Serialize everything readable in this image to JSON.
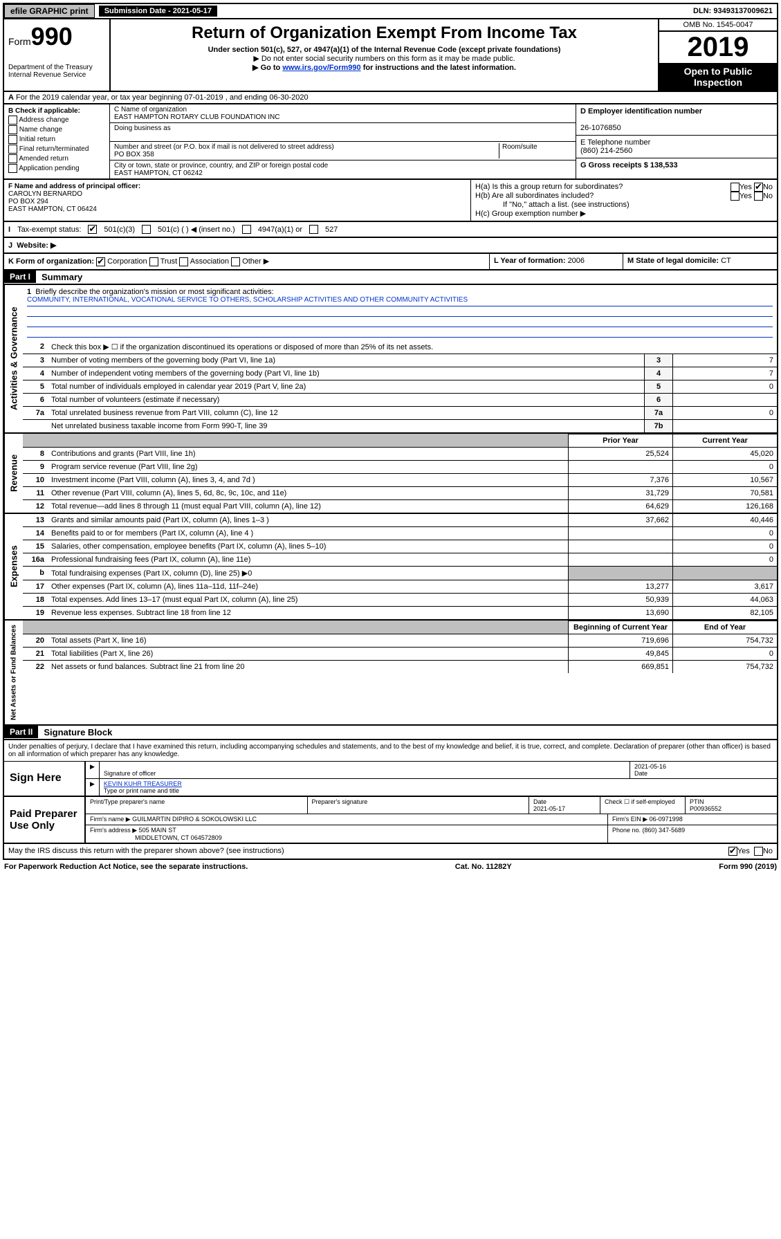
{
  "topbar": {
    "efile": "efile GRAPHIC print",
    "sub_label": "Submission Date - 2021-05-17",
    "dln": "DLN: 93493137009621"
  },
  "header": {
    "form_label": "Form",
    "form_number": "990",
    "dept": "Department of the Treasury\nInternal Revenue Service",
    "title": "Return of Organization Exempt From Income Tax",
    "subtitle": "Under section 501(c), 527, or 4947(a)(1) of the Internal Revenue Code (except private foundations)",
    "note1": "▶ Do not enter social security numbers on this form as it may be made public.",
    "note2_pre": "▶ Go to ",
    "note2_link": "www.irs.gov/Form990",
    "note2_post": " for instructions and the latest information.",
    "omb": "OMB No. 1545-0047",
    "year": "2019",
    "open": "Open to Public Inspection"
  },
  "line_a": "For the 2019 calendar year, or tax year beginning 07-01-2019    , and ending 06-30-2020",
  "box_b": {
    "title": "B Check if applicable:",
    "opts": [
      "Address change",
      "Name change",
      "Initial return",
      "Final return/terminated",
      "Amended return",
      "Application pending"
    ]
  },
  "box_c": {
    "name_label": "C Name of organization",
    "name": "EAST HAMPTON ROTARY CLUB FOUNDATION INC",
    "dba_label": "Doing business as",
    "dba": "",
    "addr_label": "Number and street (or P.O. box if mail is not delivered to street address)",
    "room_label": "Room/suite",
    "addr": "PO BOX 358",
    "city_label": "City or town, state or province, country, and ZIP or foreign postal code",
    "city": "EAST HAMPTON, CT  06242"
  },
  "box_d": {
    "label": "D Employer identification number",
    "ein": "26-1076850",
    "e_label": "E Telephone number",
    "phone": "(860) 214-2560",
    "g_label": "G Gross receipts $ ",
    "gross": "138,533"
  },
  "box_f": {
    "label": "F  Name and address of principal officer:",
    "name": "CAROLYN BERNARDO",
    "addr1": "PO BOX 294",
    "addr2": "EAST HAMPTON, CT  06424"
  },
  "box_h": {
    "a": "H(a)  Is this a group return for subordinates?",
    "b": "H(b)  Are all subordinates included?",
    "note": "If \"No,\" attach a list. (see instructions)",
    "c": "H(c)  Group exemption number ▶"
  },
  "row_i": {
    "label": "Tax-exempt status:",
    "o1": "501(c)(3)",
    "o2": "501(c) (   ) ◀ (insert no.)",
    "o3": "4947(a)(1) or",
    "o4": "527"
  },
  "row_j": {
    "label": "Website: ▶",
    "val": ""
  },
  "row_k": {
    "label": "K Form of organization:",
    "corp": "Corporation",
    "trust": "Trust",
    "assoc": "Association",
    "other": "Other ▶"
  },
  "row_l": {
    "label": "L Year of formation: ",
    "val": "2006"
  },
  "row_m": {
    "label": "M State of legal domicile: ",
    "val": "CT"
  },
  "part1": {
    "header": "Part I",
    "title": "Summary"
  },
  "gov": {
    "l1_label": "Briefly describe the organization's mission or most significant activities:",
    "l1_text": "COMMUNITY, INTERNATIONAL, VOCATIONAL SERVICE TO OTHERS, SCHOLARSHIP ACTIVITIES AND OTHER COMMUNITY ACTIVITIES",
    "l2": "Check this box ▶ ☐  if the organization discontinued its operations or disposed of more than 25% of its net assets.",
    "l3": "Number of voting members of the governing body (Part VI, line 1a)",
    "l3v": "7",
    "l4": "Number of independent voting members of the governing body (Part VI, line 1b)",
    "l4v": "7",
    "l5": "Total number of individuals employed in calendar year 2019 (Part V, line 2a)",
    "l5v": "0",
    "l6": "Total number of volunteers (estimate if necessary)",
    "l6v": "",
    "l7a": "Total unrelated business revenue from Part VIII, column (C), line 12",
    "l7av": "0",
    "l7b": "Net unrelated business taxable income from Form 990-T, line 39",
    "l7bv": ""
  },
  "rev": {
    "prior_h": "Prior Year",
    "curr_h": "Current Year",
    "r": [
      {
        "n": "8",
        "t": "Contributions and grants (Part VIII, line 1h)",
        "p": "25,524",
        "c": "45,020"
      },
      {
        "n": "9",
        "t": "Program service revenue (Part VIII, line 2g)",
        "p": "",
        "c": "0"
      },
      {
        "n": "10",
        "t": "Investment income (Part VIII, column (A), lines 3, 4, and 7d )",
        "p": "7,376",
        "c": "10,567"
      },
      {
        "n": "11",
        "t": "Other revenue (Part VIII, column (A), lines 5, 6d, 8c, 9c, 10c, and 11e)",
        "p": "31,729",
        "c": "70,581"
      },
      {
        "n": "12",
        "t": "Total revenue—add lines 8 through 11 (must equal Part VIII, column (A), line 12)",
        "p": "64,629",
        "c": "126,168"
      }
    ]
  },
  "exp": {
    "r": [
      {
        "n": "13",
        "t": "Grants and similar amounts paid (Part IX, column (A), lines 1–3 )",
        "p": "37,662",
        "c": "40,446"
      },
      {
        "n": "14",
        "t": "Benefits paid to or for members (Part IX, column (A), line 4 )",
        "p": "",
        "c": "0"
      },
      {
        "n": "15",
        "t": "Salaries, other compensation, employee benefits (Part IX, column (A), lines 5–10)",
        "p": "",
        "c": "0"
      },
      {
        "n": "16a",
        "t": "Professional fundraising fees (Part IX, column (A), line 11e)",
        "p": "",
        "c": "0"
      },
      {
        "n": "b",
        "t": "Total fundraising expenses (Part IX, column (D), line 25) ▶0",
        "p": "GRAY",
        "c": "GRAY"
      },
      {
        "n": "17",
        "t": "Other expenses (Part IX, column (A), lines 11a–11d, 11f–24e)",
        "p": "13,277",
        "c": "3,617"
      },
      {
        "n": "18",
        "t": "Total expenses. Add lines 13–17 (must equal Part IX, column (A), line 25)",
        "p": "50,939",
        "c": "44,063"
      },
      {
        "n": "19",
        "t": "Revenue less expenses. Subtract line 18 from line 12",
        "p": "13,690",
        "c": "82,105"
      }
    ]
  },
  "net": {
    "begin_h": "Beginning of Current Year",
    "end_h": "End of Year",
    "r": [
      {
        "n": "20",
        "t": "Total assets (Part X, line 16)",
        "p": "719,696",
        "c": "754,732"
      },
      {
        "n": "21",
        "t": "Total liabilities (Part X, line 26)",
        "p": "49,845",
        "c": "0"
      },
      {
        "n": "22",
        "t": "Net assets or fund balances. Subtract line 21 from line 20",
        "p": "669,851",
        "c": "754,732"
      }
    ]
  },
  "part2": {
    "header": "Part II",
    "title": "Signature Block"
  },
  "sig": {
    "decl": "Under penalties of perjury, I declare that I have examined this return, including accompanying schedules and statements, and to the best of my knowledge and belief, it is true, correct, and complete. Declaration of preparer (other than officer) is based on all information of which preparer has any knowledge.",
    "sign_here": "Sign Here",
    "sig_officer": "Signature of officer",
    "date1": "2021-05-16",
    "date_l": "Date",
    "officer_name": "KEVIN KUHR  TREASURER",
    "type_name": "Type or print name and title",
    "paid": "Paid Preparer Use Only",
    "prep_name_l": "Print/Type preparer's name",
    "prep_sig_l": "Preparer's signature",
    "prep_date_l": "Date",
    "prep_date": "2021-05-17",
    "check_l": "Check ☐ if self-employed",
    "ptin_l": "PTIN",
    "ptin": "P00936552",
    "firm_name_l": "Firm's name    ▶",
    "firm_name": "GUILMARTIN DIPIRO & SOKOLOWSKI LLC",
    "firm_ein_l": "Firm's EIN ▶",
    "firm_ein": "06-0971998",
    "firm_addr_l": "Firm's address ▶",
    "firm_addr": "505 MAIN ST",
    "firm_city": "MIDDLETOWN, CT  064572809",
    "phone_l": "Phone no. ",
    "phone": "(860) 347-5689"
  },
  "discuss": "May the IRS discuss this return with the preparer shown above? (see instructions)",
  "footer": {
    "pra": "For Paperwork Reduction Act Notice, see the separate instructions.",
    "cat": "Cat. No. 11282Y",
    "form": "Form 990 (2019)"
  },
  "side": {
    "gov": "Activities & Governance",
    "rev": "Revenue",
    "exp": "Expenses",
    "net": "Net Assets or Fund Balances"
  }
}
